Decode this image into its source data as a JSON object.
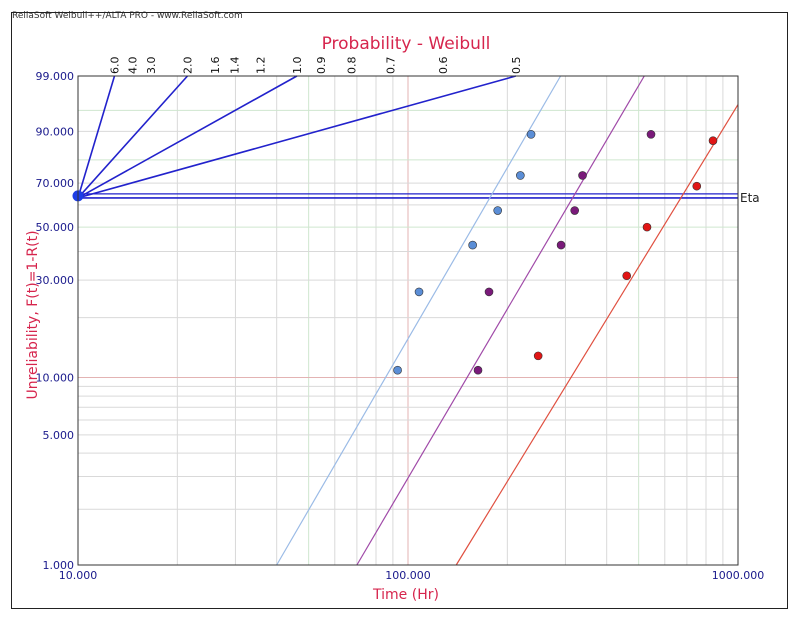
{
  "header": {
    "text": "ReliaSoft Weibull++/ALTA PRO - www.ReliaSoft.com"
  },
  "chart_data": {
    "type": "scatter",
    "title": "Probability - Weibull",
    "xlabel": "Time (Hr)",
    "ylabel": "Unreliability, F(t)=1-R(t)",
    "x_scale": "log",
    "y_scale": "weibull",
    "xlim": [
      10,
      1000
    ],
    "ylim": [
      1,
      99
    ],
    "x_tick_labels": [
      "10.000",
      "100.000",
      "1000.000"
    ],
    "y_ticks": [
      1,
      5,
      10,
      30,
      50,
      70,
      90,
      99
    ],
    "y_tick_labels": [
      "1.000",
      "5.000",
      "10.000",
      "30.000",
      "50.000",
      "70.000",
      "90.000",
      "99.000"
    ],
    "grid": true,
    "beta_scale": {
      "labels": [
        "6.0",
        "4.0",
        "3.0",
        "2.0",
        "1.6",
        "1.4",
        "1.2",
        "1.0",
        "0.9",
        "0.8",
        "0.7",
        "0.6",
        "0.5"
      ],
      "fan_lines": [
        6.0,
        2.0,
        1.0,
        0.5
      ],
      "origin_x": 10
    },
    "eta_line": {
      "label": "Eta",
      "y": 63.2
    },
    "series": [
      {
        "color": "#5b8ed6",
        "line_color": "#9bbbe6",
        "points": [
          [
            93,
            10.9
          ],
          [
            108,
            26.5
          ],
          [
            157,
            42.5
          ],
          [
            187,
            57.4
          ],
          [
            219,
            73.4
          ],
          [
            236,
            89.1
          ]
        ],
        "fit_line": [
          [
            40,
            1
          ],
          [
            290,
            99
          ]
        ]
      },
      {
        "color": "#7a1a7a",
        "line_color": "#a04aa8",
        "points": [
          [
            163,
            10.9
          ],
          [
            176,
            26.5
          ],
          [
            291,
            42.5
          ],
          [
            320,
            57.4
          ],
          [
            338,
            73.4
          ],
          [
            545,
            89.1
          ]
        ],
        "fit_line": [
          [
            70,
            1
          ],
          [
            520,
            99
          ]
        ]
      },
      {
        "color": "#e11515",
        "line_color": "#e05040",
        "points": [
          [
            248,
            12.9
          ],
          [
            460,
            31.4
          ],
          [
            530,
            50
          ],
          [
            750,
            68.6
          ],
          [
            840,
            87.1
          ]
        ],
        "fit_line": [
          [
            140,
            1
          ],
          [
            1000,
            96
          ]
        ]
      }
    ]
  }
}
